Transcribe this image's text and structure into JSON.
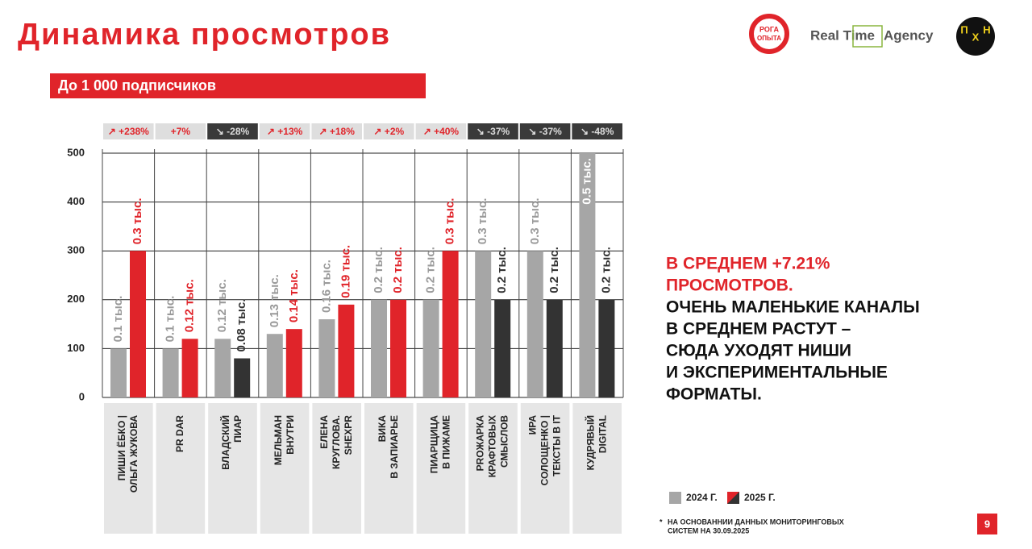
{
  "header": {
    "title": "Динамика просмотров",
    "banner": "До 1 000 подписчиков",
    "logos": [
      "РОГА",
      "ОПЫТА",
      "Real Time",
      "Agency",
      "П",
      "Х",
      "Н"
    ]
  },
  "chart_data": {
    "type": "bar",
    "categories": [
      [
        "ПИШИ ЁБКО |",
        "ОЛЬГА ЖУКОВА"
      ],
      [
        "PR DAR"
      ],
      [
        "ВЛАДСКИЙ",
        "ПИАР"
      ],
      [
        "МЕЛЬМАН",
        "ВНУТРИ"
      ],
      [
        "ЕЛЕНА",
        "КРУГЛОВА.",
        "SHEXPR"
      ],
      [
        "ВИКА",
        "В ЗАПИАРЬЕ"
      ],
      [
        "ПИАРЩИЦА",
        "В ПИЖАМЕ"
      ],
      [
        "PRОЖАРКА",
        "КРАФТОВЫХ",
        "СМЫСЛОВ"
      ],
      [
        "ИРА",
        "СОЛОЩЕНКО |",
        "ТЕКСТЫ В IT"
      ],
      [
        "КУДРЯВЫЙ",
        "DIGITAL"
      ]
    ],
    "series": [
      {
        "name": "2024 Г.",
        "color": "#a6a6a6",
        "label_color": "#9a9a9a",
        "values": [
          100,
          100,
          120,
          130,
          160,
          200,
          200,
          300,
          300,
          500
        ],
        "value_labels": [
          "0.1 тыс.",
          "0.1 тыс.",
          "0.12 тыс.",
          "0.13 тыс.",
          "0.16 тыс.",
          "0.2 тыс.",
          "0.2 тыс.",
          "0.3 тыс.",
          "0.3 тыс.",
          "0.5 тыс."
        ]
      },
      {
        "name": "2025 Г.",
        "color": "#e0242a",
        "values": [
          300,
          120,
          80,
          140,
          190,
          200,
          300,
          200,
          200,
          200
        ],
        "point_colors": [
          "#e0242a",
          "#e0242a",
          "#333333",
          "#e0242a",
          "#e0242a",
          "#e0242a",
          "#e0242a",
          "#333333",
          "#333333",
          "#333333"
        ],
        "value_labels": [
          "0.3 тыс.",
          "0.12 тыс.",
          "0.08 тыс.",
          "0.14 тыс.",
          "0.19 тыс.",
          "0.2 тыс.",
          "0.3 тыс.",
          "0.2 тыс.",
          "0.2 тыс.",
          "0.2 тыс."
        ]
      }
    ],
    "changes": [
      {
        "label": "↗ +238%",
        "color": "#dedede"
      },
      {
        "label": "+7%",
        "color": "#dedede"
      },
      {
        "label": "↘ -28%",
        "color": "#3a3a3a"
      },
      {
        "label": "↗ +13%",
        "color": "#dedede"
      },
      {
        "label": "↗ +18%",
        "color": "#dedede"
      },
      {
        "label": "↗ +2%",
        "color": "#dedede"
      },
      {
        "label": "↗ +40%",
        "color": "#dedede"
      },
      {
        "label": "↘ -37%",
        "color": "#3a3a3a"
      },
      {
        "label": "↘ -37%",
        "color": "#3a3a3a"
      },
      {
        "label": "↘ -48%",
        "color": "#3a3a3a"
      }
    ],
    "ylim": [
      0,
      500
    ],
    "yticks": [
      0,
      100,
      200,
      300,
      400,
      500
    ],
    "grid": true
  },
  "summary_highlight": [
    "В СРЕДНЕМ +7.21%",
    "ПРОСМОТРОВ."
  ],
  "summary": [
    "ОЧЕНЬ МАЛЕНЬКИЕ КАНАЛЫ",
    "В СРЕДНЕМ РАСТУТ –",
    "СЮДА УХОДЯТ НИШИ",
    "И ЭКСПЕРИМЕНТАЛЬНЫЕ",
    "ФОРМАТЫ."
  ],
  "footnote": {
    "mark": "*",
    "lines": [
      "НА ОСНОВАННИИ ДАННЫХ МОНИТОРИНГОВЫХ",
      "СИСТЕМ НА 30.09.2025"
    ]
  },
  "page_number": "9"
}
